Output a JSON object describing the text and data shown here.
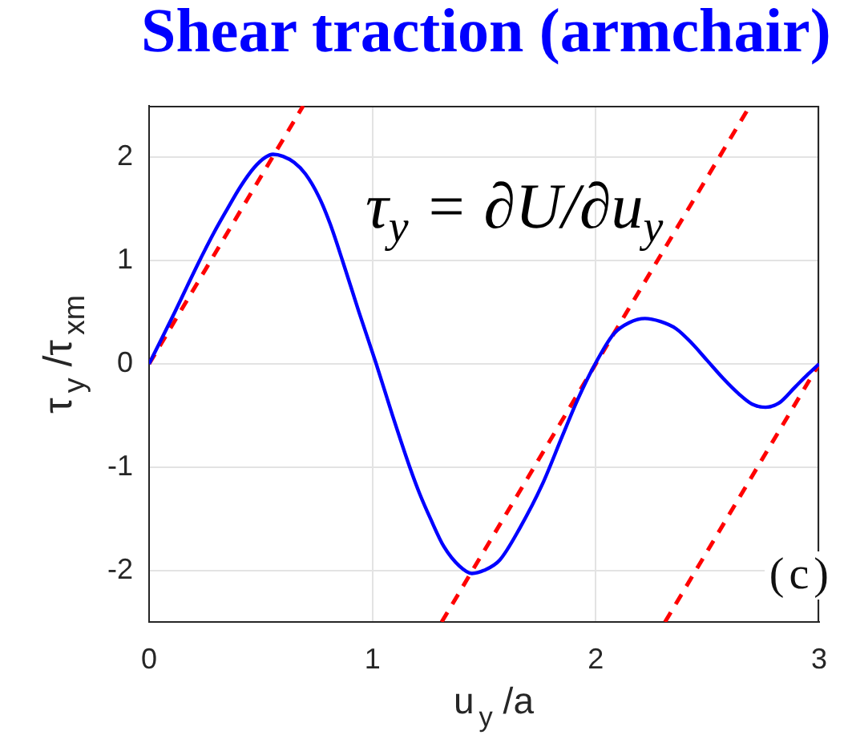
{
  "chart_data": {
    "type": "line",
    "title": "Shear traction (armchair)",
    "xlabel": "u$_{y}$ /a",
    "ylabel": "τ$_{y}$ /τ$_{xm}$",
    "xlim": [
      0,
      3
    ],
    "xticks": [
      0,
      1,
      2,
      3
    ],
    "ylim": [
      -2.5,
      2.5
    ],
    "yticks": [
      -2,
      -1,
      0,
      1,
      2
    ],
    "grid": true,
    "annotations": [
      "τ$_{y}$ = ∂U/∂u$_{y}$",
      "(c)"
    ],
    "series": [
      {
        "color": "#0000ff",
        "x": [
          0,
          0.06,
          0.115,
          0.17,
          0.226,
          0.29,
          0.35,
          0.41,
          0.47,
          0.52,
          0.555,
          0.6,
          0.65,
          0.7,
          0.76,
          0.81,
          0.866,
          0.94,
          1.017,
          1.09,
          1.167,
          1.21,
          1.26,
          1.32,
          1.39,
          1.445,
          1.5,
          1.57,
          1.66,
          1.76,
          1.85,
          1.92,
          1.99,
          2.08,
          2.15,
          2.22,
          2.29,
          2.36,
          2.43,
          2.5,
          2.57,
          2.64,
          2.7,
          2.76,
          2.82,
          2.89,
          2.95,
          3.0
        ],
        "values": [
          0,
          0.26,
          0.5,
          0.75,
          1.0,
          1.27,
          1.5,
          1.72,
          1.9,
          2.0,
          2.03,
          2.01,
          1.95,
          1.84,
          1.62,
          1.36,
          1.0,
          0.5,
          0,
          -0.5,
          -1.0,
          -1.25,
          -1.5,
          -1.77,
          -1.96,
          -2.03,
          -2.0,
          -1.9,
          -1.59,
          -1.17,
          -0.7,
          -0.34,
          -0.03,
          0.29,
          0.4,
          0.44,
          0.41,
          0.34,
          0.2,
          0.03,
          -0.14,
          -0.29,
          -0.39,
          -0.42,
          -0.38,
          -0.23,
          -0.1,
          0
        ]
      },
      {
        "color": "#ff0000",
        "line_style": "dashed",
        "x": [
          0,
          0.69
        ],
        "values": [
          0,
          2.5
        ]
      },
      {
        "color": "#ff0000",
        "line_style": "dashed",
        "x": [
          1.31,
          2.69
        ],
        "values": [
          -2.5,
          2.5
        ]
      },
      {
        "color": "#ff0000",
        "line_style": "dashed",
        "x": [
          2.31,
          3.0
        ],
        "values": [
          -2.5,
          0
        ]
      }
    ]
  }
}
